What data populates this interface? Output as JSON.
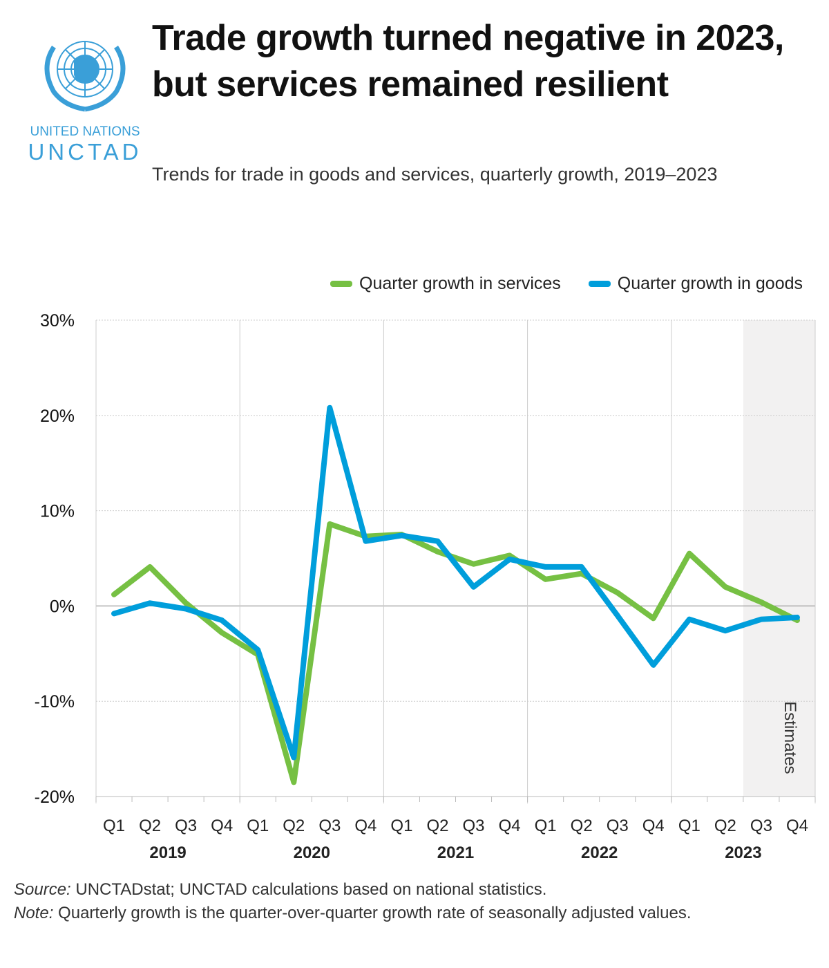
{
  "logo": {
    "line1": "UNITED NATIONS",
    "line2": "UNCTAD",
    "color": "#3a9fd8"
  },
  "title": "Trade growth turned negative in 2023, but services remained resilient",
  "subtitle": "Trends for trade in goods and services, quarterly growth, 2019–2023",
  "legend": [
    {
      "label": "Quarter growth in services",
      "color": "#76c043"
    },
    {
      "label": "Quarter growth in goods",
      "color": "#009edb"
    }
  ],
  "footer": {
    "source_label": "Source:",
    "source_text": "UNCTADstat; UNCTAD calculations based on national statistics.",
    "note_label": "Note:",
    "note_text": "Quarterly growth is the quarter-over-quarter growth rate of seasonally adjusted values."
  },
  "chart_data": {
    "type": "line",
    "x": [
      "Q1",
      "Q2",
      "Q3",
      "Q4",
      "Q1",
      "Q2",
      "Q3",
      "Q4",
      "Q1",
      "Q2",
      "Q3",
      "Q4",
      "Q1",
      "Q2",
      "Q3",
      "Q4",
      "Q1",
      "Q2",
      "Q3",
      "Q4"
    ],
    "years": [
      "2019",
      "2020",
      "2021",
      "2022",
      "2023"
    ],
    "ylim": [
      -20,
      30
    ],
    "yticks": [
      30,
      20,
      10,
      0,
      -10,
      -20
    ],
    "ytick_labels": [
      "30%",
      "20%",
      "10%",
      "0%",
      "-10%",
      "-20%"
    ],
    "grid": true,
    "legend_position": "top-right",
    "annotation": {
      "label": "Estimates",
      "from_index": 18,
      "to_index": 19,
      "color": "#f2f1f1"
    },
    "series": [
      {
        "name": "Quarter growth in services",
        "color": "#76c043",
        "values": [
          1.2,
          4.1,
          0.3,
          -2.8,
          -5.1,
          -18.5,
          8.6,
          7.3,
          7.5,
          5.7,
          4.4,
          5.3,
          2.8,
          3.4,
          1.4,
          -1.3,
          5.5,
          2.0,
          0.4,
          -1.5
        ]
      },
      {
        "name": "Quarter growth in goods",
        "color": "#009edb",
        "values": [
          -0.8,
          0.3,
          -0.3,
          -1.5,
          -4.6,
          -15.9,
          20.8,
          6.8,
          7.4,
          6.8,
          2.0,
          4.9,
          4.1,
          4.1,
          -1.0,
          -6.2,
          -1.4,
          -2.6,
          -1.4,
          -1.2
        ]
      }
    ]
  }
}
